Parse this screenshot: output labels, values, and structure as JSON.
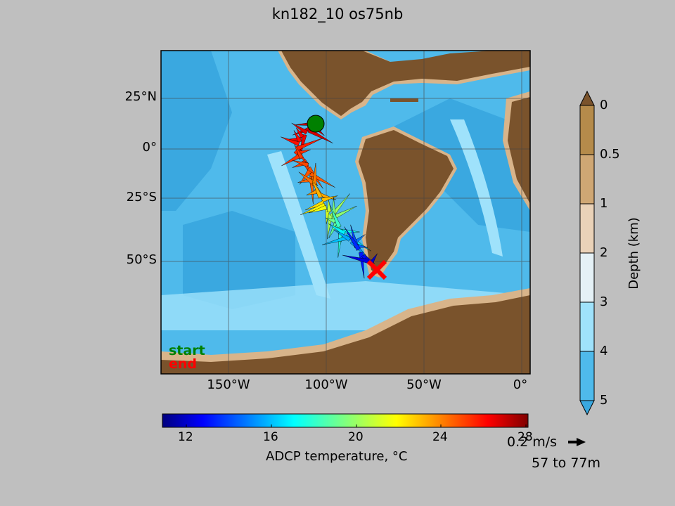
{
  "title": "kn182_10 os75nb",
  "map": {
    "lat_labels": [
      "25°N",
      "0°",
      "25°S",
      "50°S"
    ],
    "lon_labels": [
      "150°W",
      "100°W",
      "50°W",
      "0°"
    ],
    "start_label": "start",
    "end_label": "end",
    "start_color": "#008000",
    "end_color": "#ff0000"
  },
  "temperature_colorbar": {
    "label": "ADCP temperature, °C",
    "ticks": [
      "12",
      "16",
      "20",
      "24",
      "28"
    ],
    "range": [
      11,
      28
    ]
  },
  "depth_colorbar": {
    "label": "Depth (km)",
    "ticks": [
      "0",
      "0.5",
      "1",
      "2",
      "3",
      "4",
      "5"
    ],
    "colors": [
      "#b58b4b",
      "#cfa774",
      "#ead2b8",
      "#e5f1f6",
      "#9fe2fb",
      "#4fbaeb"
    ]
  },
  "arrow_key": {
    "speed_label": "0.2 m/s",
    "depth_range": "57 to 77m"
  },
  "colors": {
    "land": "#7a532c",
    "shelf": "#d8b48a",
    "ocean_shallow": "#9fe2fb",
    "ocean_mid": "#4fbaeb",
    "ocean_deep": "#2fa0d8"
  }
}
